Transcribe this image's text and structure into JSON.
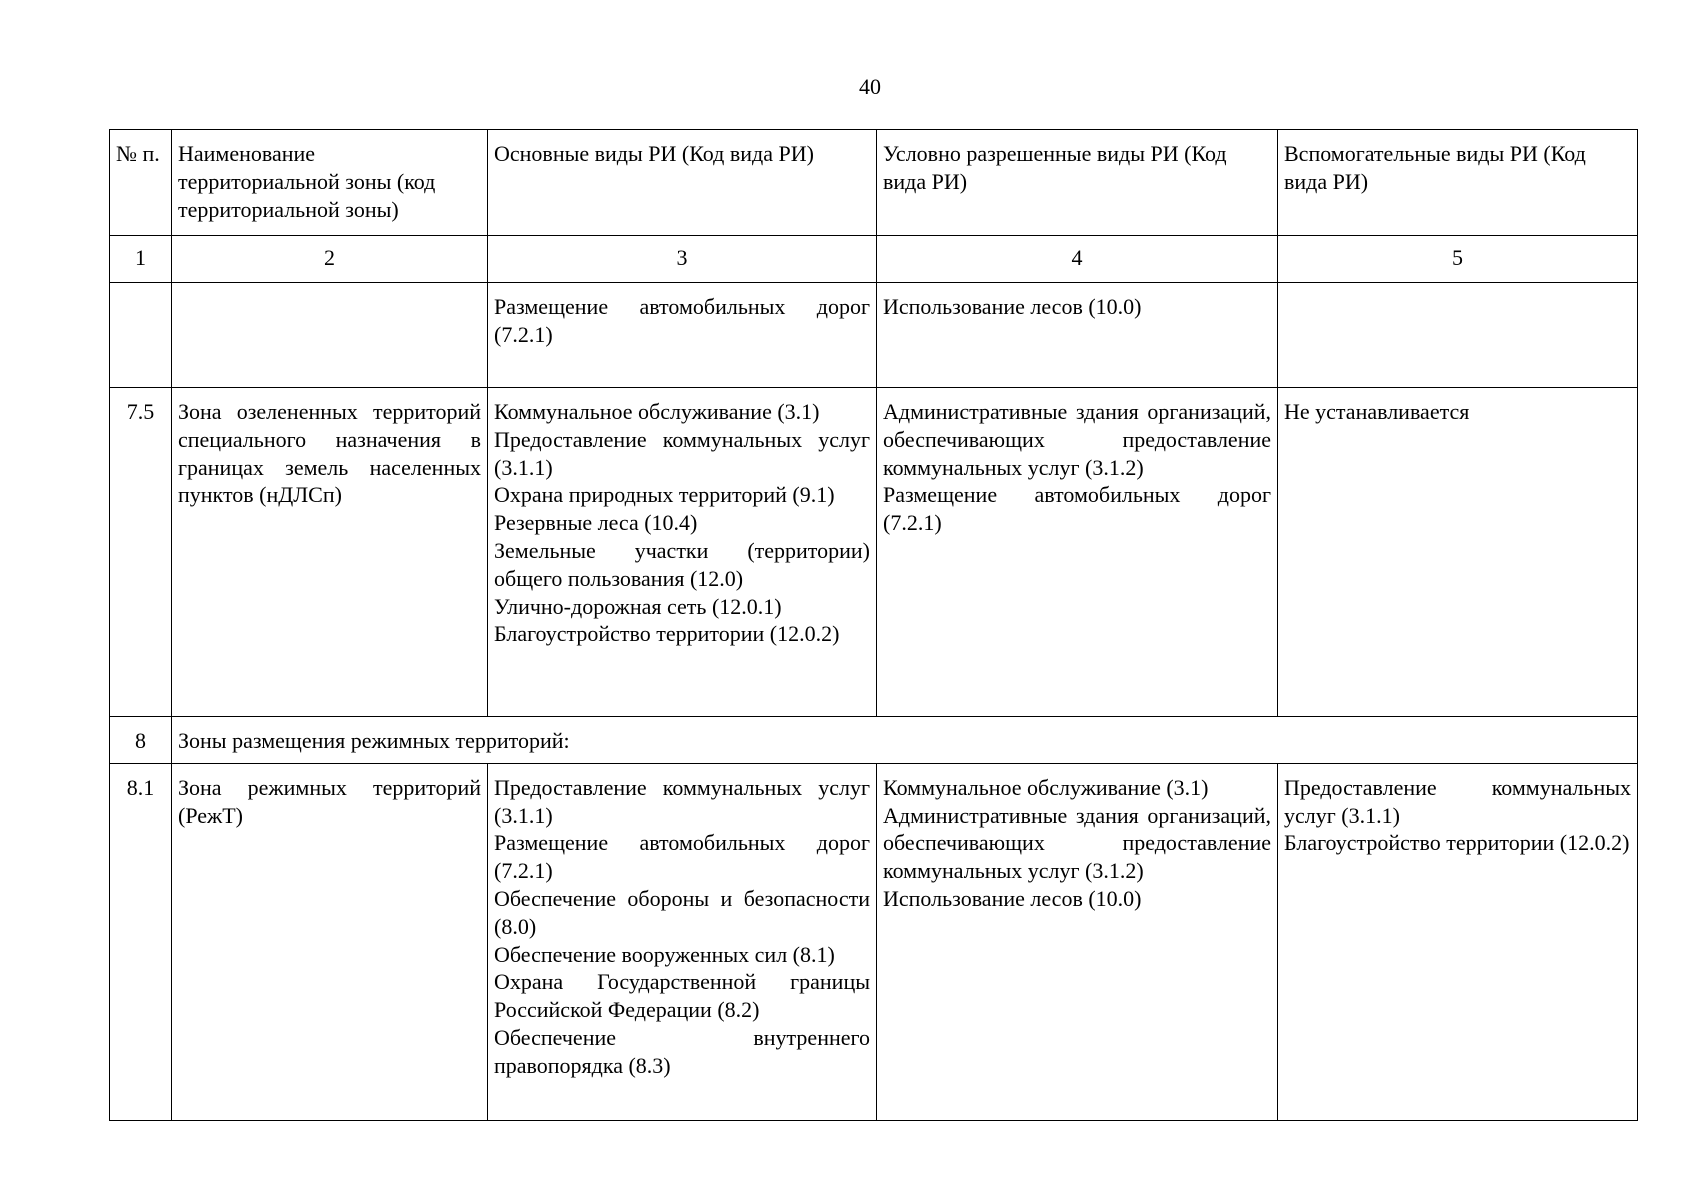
{
  "page_number": "40",
  "table": {
    "headers": [
      "№ п.",
      "Наименование территориальной зоны (код территориальной зоны)",
      "Основные виды РИ (Код вида РИ)",
      "Условно разрешенные виды РИ (Код вида РИ)",
      "Вспомогательные виды РИ (Код вида РИ)"
    ],
    "column_numbers": [
      "1",
      "2",
      "3",
      "4",
      "5"
    ],
    "rows": [
      {
        "num": "",
        "zone": "",
        "main": [
          "Размещение автомобильных дорог (7.2.1)"
        ],
        "conditional": [
          "Использование лесов (10.0)"
        ],
        "auxiliary": []
      },
      {
        "num": "7.5",
        "zone": "Зона озелененных территорий специального назначения в границах земель населенных пунктов (нДЛСп)",
        "main": [
          "Коммунальное обслуживание (3.1)",
          "Предоставление коммунальных услуг (3.1.1)",
          "Охрана природных территорий (9.1)",
          "Резервные леса (10.4)",
          "Земельные участки (территории) общего пользования (12.0)",
          "Улично-дорожная сеть (12.0.1)",
          "Благоустройство территории (12.0.2)"
        ],
        "conditional": [
          "Административные здания организаций, обеспечивающих предоставление коммунальных услуг (3.1.2)",
          "Размещение автомобильных дорог (7.2.1)"
        ],
        "auxiliary": [
          "Не устанавливается"
        ]
      },
      {
        "section": true,
        "num": "8",
        "title": "Зоны размещения режимных территорий:"
      },
      {
        "num": "8.1",
        "zone": "Зона режимных территорий (РежТ)",
        "main": [
          "Предоставление коммунальных услуг (3.1.1)",
          "Размещение автомобильных дорог (7.2.1)",
          "Обеспечение обороны и безопасности (8.0)",
          "Обеспечение вооруженных сил (8.1)",
          "Охрана Государственной границы Российской Федерации (8.2)",
          "Обеспечение внутреннего правопорядка (8.3)"
        ],
        "conditional": [
          "Коммунальное обслуживание (3.1)",
          "Административные здания организаций, обеспечивающих предоставление коммунальных услуг (3.1.2)",
          "Использование лесов (10.0)"
        ],
        "auxiliary": [
          "Предоставление коммунальных услуг (3.1.1)",
          "Благоустройство территории (12.0.2)"
        ]
      }
    ]
  }
}
